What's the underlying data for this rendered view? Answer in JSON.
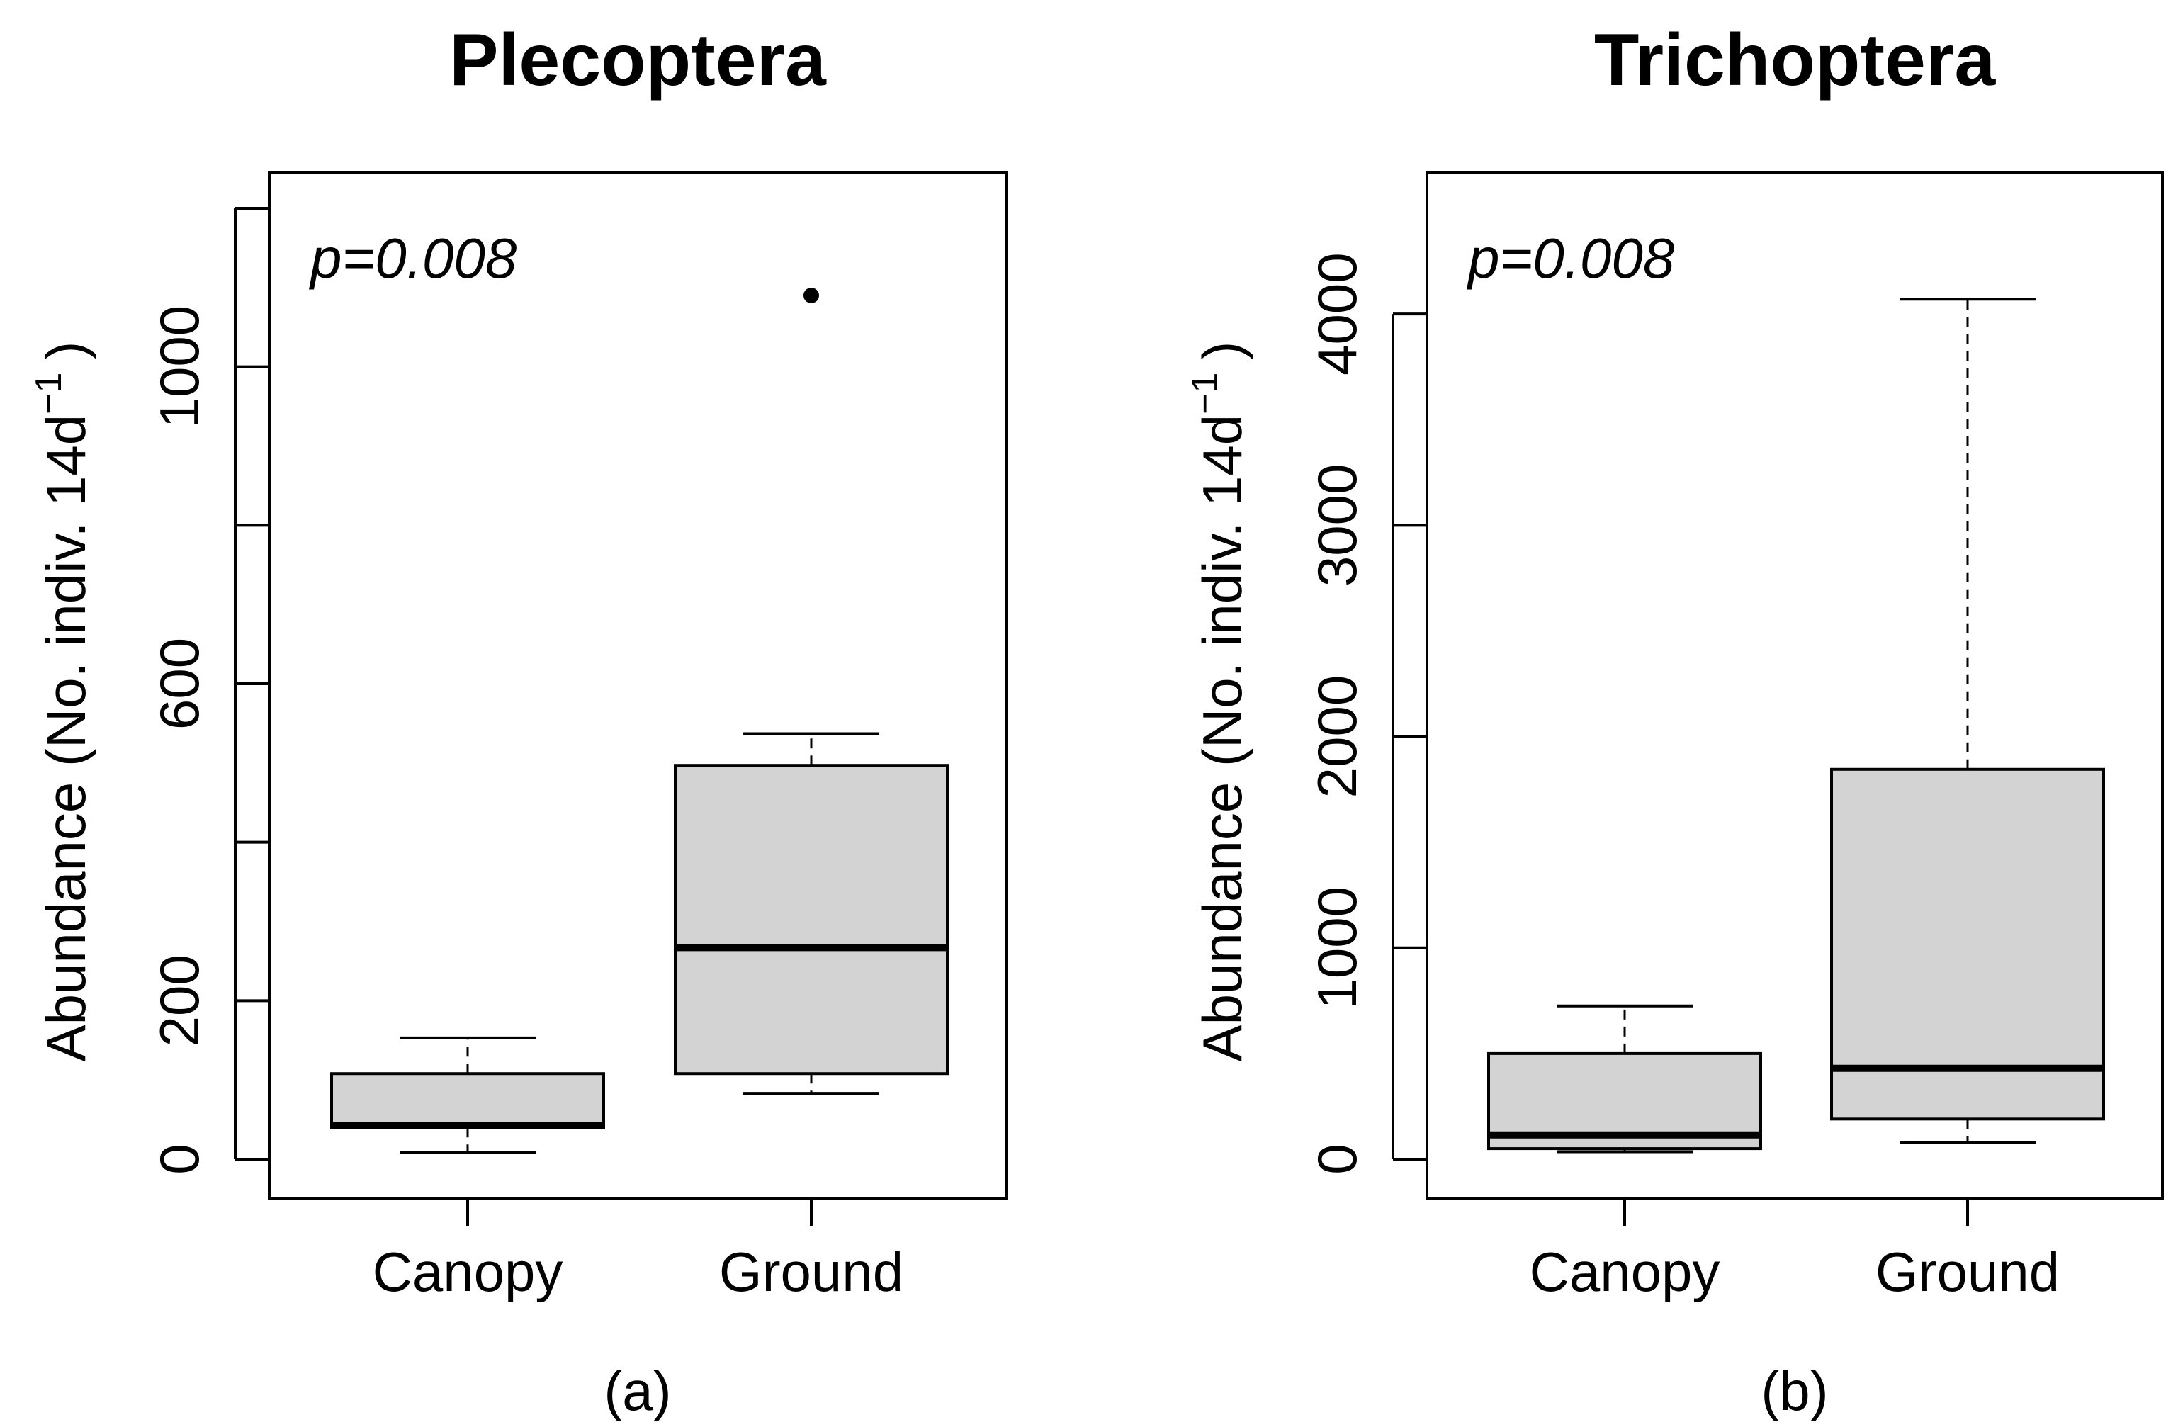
{
  "colors": {
    "box_fill": "#d3d3d3",
    "ink": "#000000",
    "background": "#ffffff"
  },
  "chart_data": [
    {
      "type": "box",
      "panel_label": "(a)",
      "title": "Plecoptera",
      "annotation": "p=0.008",
      "ylabel_main": "Abundance   (No. indiv. 14d",
      "ylabel_sup": "−1",
      "ylabel_close": ")",
      "ylim": [
        0,
        1200
      ],
      "yticks": [
        0,
        200,
        400,
        600,
        800,
        1000,
        1200
      ],
      "ytick_labels": [
        "0",
        "200",
        "",
        "600",
        "",
        "1000",
        ""
      ],
      "categories": [
        "Canopy",
        "Ground"
      ],
      "boxes": [
        {
          "name": "Canopy",
          "whisker_low": 8,
          "q1": 40,
          "median": 42,
          "q3": 108,
          "whisker_high": 153,
          "outliers": []
        },
        {
          "name": "Ground",
          "whisker_low": 83,
          "q1": 108,
          "median": 267,
          "q3": 497,
          "whisker_high": 537,
          "outliers": [
            1090
          ]
        }
      ]
    },
    {
      "type": "box",
      "panel_label": "(b)",
      "title": "Trichoptera",
      "annotation": "p=0.008",
      "ylabel_main": "Abundance   (No. indiv. 14d",
      "ylabel_sup": "−1",
      "ylabel_close": ")",
      "ylim": [
        0,
        4500
      ],
      "yticks": [
        0,
        1000,
        2000,
        3000,
        4000
      ],
      "ytick_labels": [
        "0",
        "1000",
        "2000",
        "3000",
        "4000"
      ],
      "categories": [
        "Canopy",
        "Ground"
      ],
      "boxes": [
        {
          "name": "Canopy",
          "whisker_low": 35,
          "q1": 50,
          "median": 115,
          "q3": 500,
          "whisker_high": 725,
          "outliers": []
        },
        {
          "name": "Ground",
          "whisker_low": 80,
          "q1": 190,
          "median": 430,
          "q3": 1845,
          "whisker_high": 4070,
          "outliers": []
        }
      ]
    }
  ]
}
